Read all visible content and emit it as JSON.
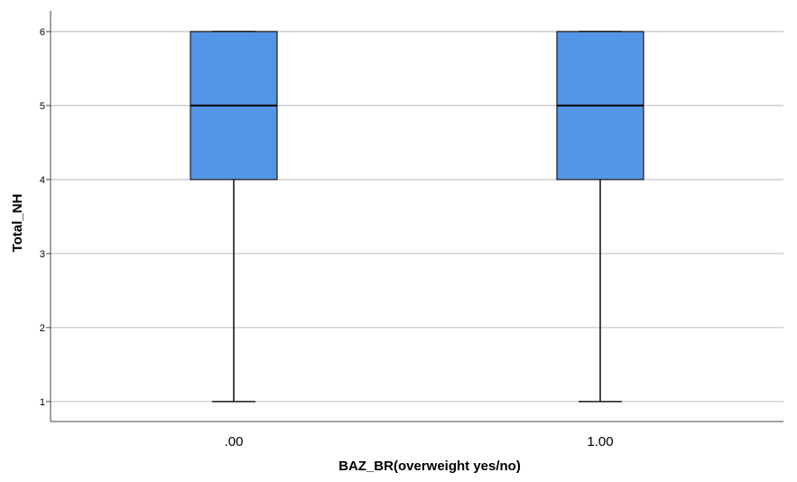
{
  "chart_data": {
    "type": "boxplot",
    "title": "",
    "xlabel": "BAZ_BR(overweight yes/no)",
    "ylabel": "Total_NH",
    "categories": [
      ".00",
      "1.00"
    ],
    "boxes": [
      {
        "category": ".00",
        "min": 1,
        "q1": 4,
        "median": 5,
        "q3": 6,
        "max": 6
      },
      {
        "category": "1.00",
        "min": 1,
        "q1": 4,
        "median": 5,
        "q3": 6,
        "max": 6
      }
    ],
    "yticks": [
      "1",
      "2",
      "3",
      "4",
      "5",
      "6"
    ],
    "ylim": [
      0.73,
      6.28
    ],
    "grid": true,
    "colors": {
      "box_fill": "#5496e6",
      "box_stroke": "#1a1a1a",
      "grid": "#c8c8c8",
      "axis": "#444444"
    }
  }
}
